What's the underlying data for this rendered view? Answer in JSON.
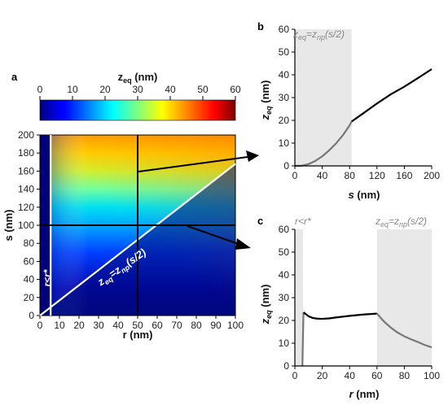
{
  "chart_data": [
    {
      "panel": "a",
      "type": "heatmap",
      "colorbar": {
        "label": "z_eq (nm)",
        "range": [
          0,
          60
        ],
        "ticks": [
          "0",
          "10",
          "20",
          "30",
          "40",
          "50",
          "60"
        ]
      },
      "xlabel": "r (nm)",
      "ylabel": "s (nm)",
      "xlim": [
        0,
        100
      ],
      "ylim": [
        0,
        200
      ],
      "xticks": [
        "0",
        "10",
        "20",
        "30",
        "40",
        "50",
        "60",
        "70",
        "80",
        "90",
        "100"
      ],
      "yticks": [
        "0",
        "20",
        "40",
        "60",
        "80",
        "100",
        "120",
        "140",
        "160",
        "180",
        "200"
      ],
      "annotations": [
        "r<r*",
        "z_eq=z_np(s/2)"
      ],
      "cut_lines": [
        {
          "axis": "r",
          "value": 50
        },
        {
          "axis": "s",
          "value": 100
        }
      ],
      "r_star": 5.5,
      "boundary_line": {
        "x": [
          0,
          100
        ],
        "y": [
          0,
          168
        ]
      }
    },
    {
      "panel": "b",
      "type": "line",
      "xlabel": "s (nm)",
      "ylabel": "z_eq (nm)",
      "xlim": [
        0,
        200
      ],
      "ylim": [
        0,
        60
      ],
      "xticks": [
        "0",
        "40",
        "80",
        "120",
        "160",
        "200"
      ],
      "yticks": [
        "0",
        "10",
        "20",
        "30",
        "40",
        "50",
        "60"
      ],
      "shaded_regions": [
        {
          "from": 0,
          "to": 83,
          "label": "z_eq=z_np(s/2)"
        }
      ],
      "series": [
        {
          "x": [
            0,
            10,
            20,
            30,
            40,
            50,
            60,
            70,
            80,
            83
          ],
          "y": [
            0,
            0.1,
            0.8,
            2.2,
            4.2,
            6.8,
            9.8,
            13.4,
            17.8,
            19.5
          ],
          "color": "#777777"
        },
        {
          "x": [
            83,
            100,
            120,
            140,
            160,
            180,
            200
          ],
          "y": [
            19.5,
            23.1,
            27.4,
            31.4,
            34.8,
            38.6,
            42.5
          ],
          "color": "#000000"
        }
      ]
    },
    {
      "panel": "c",
      "type": "line",
      "xlabel": "r (nm)",
      "ylabel": "z_eq (nm)",
      "xlim": [
        0,
        100
      ],
      "ylim": [
        0,
        60
      ],
      "xticks": [
        "0",
        "20",
        "40",
        "60",
        "80",
        "100"
      ],
      "yticks": [
        "0",
        "10",
        "20",
        "30",
        "40",
        "50",
        "60"
      ],
      "shaded_regions": [
        {
          "from": 0,
          "to": 6,
          "label": "r<r*"
        },
        {
          "from": 60,
          "to": 100,
          "label": "z_eq=z_np(s/2)"
        }
      ],
      "series": [
        {
          "x": [
            5.5,
            6,
            6.3
          ],
          "y": [
            0,
            15,
            23.5
          ],
          "color": "#777777"
        },
        {
          "x": [
            6.3,
            8,
            10,
            13,
            16,
            20,
            25,
            30,
            40,
            50,
            60
          ],
          "y": [
            23.5,
            22.8,
            21.8,
            21.1,
            20.8,
            20.7,
            20.9,
            21.3,
            22,
            22.6,
            23
          ],
          "color": "#000000"
        },
        {
          "x": [
            60,
            65,
            70,
            75,
            80,
            85,
            90,
            95,
            100
          ],
          "y": [
            23,
            19.6,
            16.9,
            14.7,
            13,
            11.7,
            10.5,
            9.2,
            8.2
          ],
          "color": "#777777"
        }
      ]
    }
  ]
}
